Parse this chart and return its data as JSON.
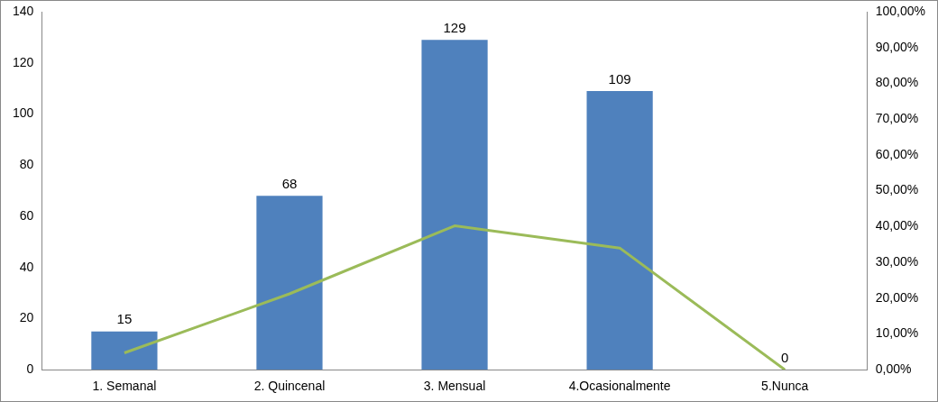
{
  "chart_data": {
    "type": "bar",
    "categories": [
      "1. Semanal",
      "2. Quincenal",
      "3. Mensual",
      "4.Ocasionalmente",
      "5.Nunca"
    ],
    "series": [
      {
        "color": "#4f81bd",
        "values": [
          15,
          68,
          129,
          109,
          0
        ],
        "value_labels": [
          "15",
          "68",
          "129",
          "109",
          "0"
        ]
      },
      {
        "type": "line",
        "axis": "y2",
        "color": "#9bbb59",
        "values": [
          4.7,
          21.2,
          40.2,
          34.0,
          0
        ],
        "marker": "none"
      }
    ],
    "ylim": [
      0,
      140
    ],
    "yticks": [
      0,
      20,
      40,
      60,
      80,
      100,
      120,
      140
    ],
    "y2lim": [
      0,
      100
    ],
    "y2ticks": [
      {
        "value": 0,
        "label": "0,00%"
      },
      {
        "value": 10,
        "label": "10,00%"
      },
      {
        "value": 20,
        "label": "20,00%"
      },
      {
        "value": 30,
        "label": "30,00%"
      },
      {
        "value": 40,
        "label": "40,00%"
      },
      {
        "value": 50,
        "label": "50,00%"
      },
      {
        "value": 60,
        "label": "60,00%"
      },
      {
        "value": 70,
        "label": "70,00%"
      },
      {
        "value": 80,
        "label": "80,00%"
      },
      {
        "value": 90,
        "label": "90,00%"
      },
      {
        "value": 100,
        "label": "100,00%"
      }
    ],
    "grid": false,
    "legend": false
  }
}
